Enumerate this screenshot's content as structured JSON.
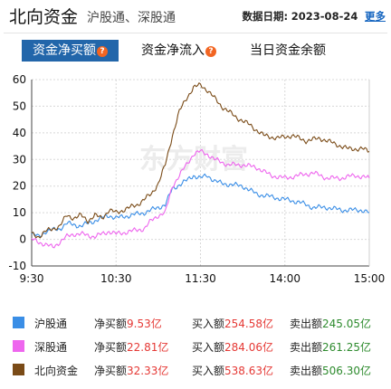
{
  "header": {
    "title": "北向资金",
    "subtitle": "沪股通、深股通",
    "date_label": "数据日期:",
    "date": "2023-08-24",
    "more": "更多"
  },
  "tabs": [
    {
      "label": "资金净买额",
      "active": true,
      "help": "?"
    },
    {
      "label": "资金净流入",
      "active": false,
      "help": "?"
    },
    {
      "label": "当日资金余额",
      "active": false
    }
  ],
  "chart_data": {
    "type": "line",
    "watermark": "东方财富",
    "x_ticks": [
      "9:30",
      "10:30",
      "11:30",
      "14:00",
      "15:00"
    ],
    "y_ticks": [
      60,
      50,
      40,
      30,
      20,
      10,
      0,
      -10
    ],
    "ylim": [
      -10,
      60
    ],
    "grid": true,
    "series": [
      {
        "name": "沪股通",
        "color": "#3a8ee6",
        "values": [
          [
            0,
            2
          ],
          [
            5,
            1
          ],
          [
            10,
            3
          ],
          [
            20,
            4
          ],
          [
            25,
            6
          ],
          [
            35,
            5
          ],
          [
            45,
            7
          ],
          [
            55,
            9
          ],
          [
            60,
            8
          ],
          [
            70,
            9
          ],
          [
            80,
            10
          ],
          [
            85,
            11
          ],
          [
            90,
            12
          ],
          [
            95,
            13
          ],
          [
            100,
            19
          ],
          [
            110,
            22
          ],
          [
            115,
            24
          ],
          [
            120,
            23
          ],
          [
            125,
            24
          ],
          [
            130,
            22
          ],
          [
            135,
            21
          ],
          [
            150,
            20
          ],
          [
            160,
            17
          ],
          [
            170,
            16
          ],
          [
            180,
            15
          ],
          [
            190,
            14
          ],
          [
            200,
            12
          ],
          [
            210,
            12
          ],
          [
            220,
            11
          ],
          [
            235,
            11
          ],
          [
            240,
            10
          ]
        ]
      },
      {
        "name": "深股通",
        "color": "#ee66ee",
        "values": [
          [
            0,
            0
          ],
          [
            5,
            -1
          ],
          [
            10,
            -2
          ],
          [
            15,
            -3
          ],
          [
            20,
            -1
          ],
          [
            25,
            1
          ],
          [
            30,
            2
          ],
          [
            35,
            2
          ],
          [
            45,
            1
          ],
          [
            55,
            3
          ],
          [
            60,
            2
          ],
          [
            70,
            3
          ],
          [
            80,
            4
          ],
          [
            85,
            7
          ],
          [
            90,
            9
          ],
          [
            95,
            10
          ],
          [
            100,
            20
          ],
          [
            105,
            24
          ],
          [
            110,
            28
          ],
          [
            115,
            32
          ],
          [
            120,
            33
          ],
          [
            125,
            32
          ],
          [
            130,
            30
          ],
          [
            135,
            29
          ],
          [
            140,
            28
          ],
          [
            150,
            28
          ],
          [
            160,
            27
          ],
          [
            170,
            24
          ],
          [
            180,
            23
          ],
          [
            190,
            24
          ],
          [
            200,
            25
          ],
          [
            210,
            23
          ],
          [
            220,
            23
          ],
          [
            230,
            24
          ],
          [
            240,
            23
          ]
        ]
      },
      {
        "name": "北向资金",
        "color": "#7a4b17",
        "values": [
          [
            0,
            2
          ],
          [
            5,
            1
          ],
          [
            10,
            3
          ],
          [
            15,
            4
          ],
          [
            20,
            5
          ],
          [
            25,
            9
          ],
          [
            30,
            8
          ],
          [
            35,
            9
          ],
          [
            40,
            7
          ],
          [
            45,
            9
          ],
          [
            50,
            8
          ],
          [
            55,
            11
          ],
          [
            60,
            10
          ],
          [
            65,
            11
          ],
          [
            70,
            12
          ],
          [
            75,
            13
          ],
          [
            80,
            15
          ],
          [
            85,
            17
          ],
          [
            90,
            21
          ],
          [
            95,
            28
          ],
          [
            100,
            39
          ],
          [
            105,
            48
          ],
          [
            110,
            53
          ],
          [
            115,
            57
          ],
          [
            120,
            58
          ],
          [
            125,
            56
          ],
          [
            130,
            53
          ],
          [
            135,
            50
          ],
          [
            145,
            46
          ],
          [
            155,
            43
          ],
          [
            165,
            39
          ],
          [
            175,
            38
          ],
          [
            185,
            39
          ],
          [
            195,
            37
          ],
          [
            205,
            38
          ],
          [
            215,
            36
          ],
          [
            225,
            34
          ],
          [
            235,
            34
          ],
          [
            240,
            33
          ]
        ]
      }
    ]
  },
  "legend": [
    {
      "name": "沪股通",
      "color": "#3a8ee6",
      "net_label": "净买额",
      "net": "9.53亿",
      "buy_label": "买入额",
      "buy": "254.58亿",
      "sell_label": "卖出额",
      "sell": "245.05亿"
    },
    {
      "name": "深股通",
      "color": "#ee66ee",
      "net_label": "净买额",
      "net": "22.81亿",
      "buy_label": "买入额",
      "buy": "284.06亿",
      "sell_label": "卖出额",
      "sell": "261.25亿"
    },
    {
      "name": "北向资金",
      "color": "#7a4b17",
      "net_label": "净买额",
      "net": "32.33亿",
      "buy_label": "买入额",
      "buy": "538.63亿",
      "sell_label": "卖出额",
      "sell": "506.30亿"
    }
  ]
}
